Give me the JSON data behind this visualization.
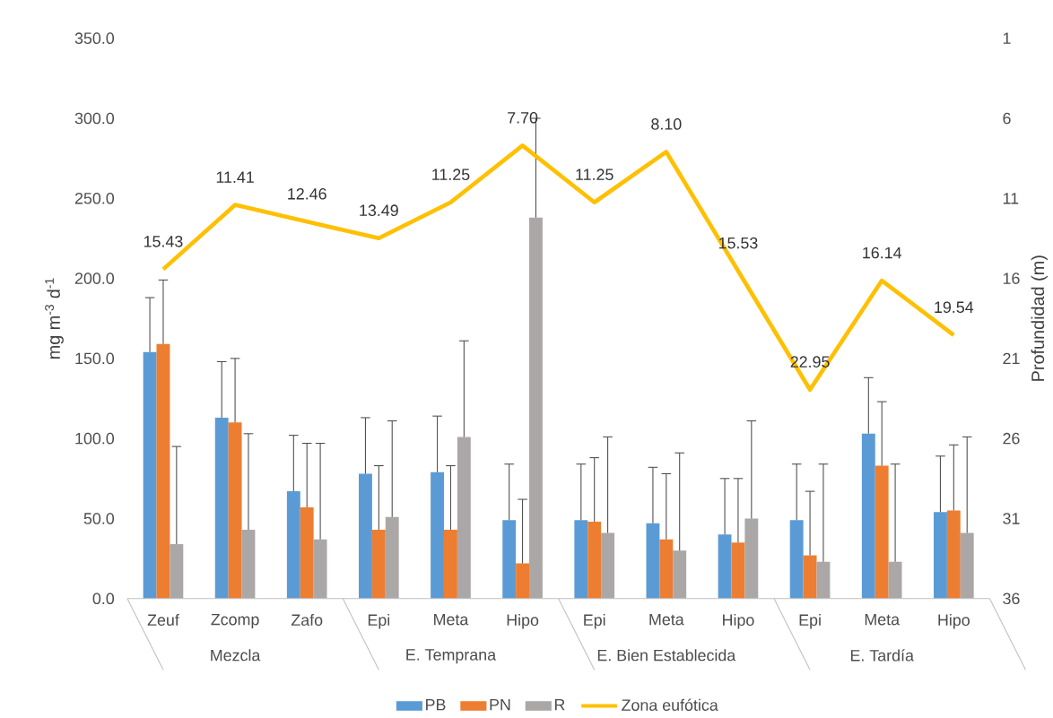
{
  "chart_data": {
    "type": "bar",
    "categories": [
      "Zeuf",
      "Zcomp",
      "Zafo",
      "Epi",
      "Meta",
      "Hipo",
      "Epi",
      "Meta",
      "Hipo",
      "Epi",
      "Meta",
      "Hipo"
    ],
    "annotations": [
      "Mezcla",
      "E. Temprana",
      "E. Bien Establecida",
      "E. Tardía"
    ],
    "ylabel": "mg m$^{-3}$ d$^{-1}$",
    "y2label": "Profundidad (m)",
    "ylim": [
      0,
      350
    ],
    "yticks": [
      {
        "value": 0,
        "label": "0.0"
      },
      {
        "value": 50,
        "label": "50.0"
      },
      {
        "value": 100,
        "label": "100.0"
      },
      {
        "value": 150,
        "label": "150.0"
      },
      {
        "value": 200,
        "label": "200.0"
      },
      {
        "value": 250,
        "label": "250.0"
      },
      {
        "value": 300,
        "label": "300.0"
      },
      {
        "value": 350,
        "label": "350.0"
      }
    ],
    "y2lim": [
      36,
      1
    ],
    "y2ticks": [
      1,
      6,
      11,
      16,
      21,
      26,
      31,
      36
    ],
    "legend": "bottom",
    "series": [
      {
        "name": "PB",
        "color": "#5b9bd5",
        "values": [
          154,
          113,
          67,
          78,
          79,
          49,
          49,
          47,
          40,
          49,
          103,
          54
        ],
        "errors": [
          [
            154,
            188
          ],
          [
            113,
            148
          ],
          [
            67,
            102
          ],
          [
            78,
            113
          ],
          [
            79,
            114
          ],
          [
            49,
            84
          ],
          [
            49,
            84
          ],
          [
            47,
            82
          ],
          [
            40,
            75
          ],
          [
            49,
            84
          ],
          [
            103,
            138
          ],
          [
            54,
            89
          ]
        ]
      },
      {
        "name": "PN",
        "color": "#ed7d31",
        "values": [
          159,
          110,
          57,
          43,
          43,
          22,
          48,
          37,
          35,
          27,
          83,
          55
        ],
        "errors": [
          [
            159,
            199
          ],
          [
            110,
            150
          ],
          [
            57,
            97
          ],
          [
            43,
            83
          ],
          [
            43,
            83
          ],
          [
            22,
            62
          ],
          [
            48,
            88
          ],
          [
            37,
            78
          ],
          [
            35,
            75
          ],
          [
            27,
            67
          ],
          [
            83,
            123
          ],
          [
            55,
            96
          ]
        ]
      },
      {
        "name": "R",
        "color": "#aba7a6",
        "values": [
          34,
          43,
          37,
          51,
          101,
          238,
          41,
          30,
          50,
          23,
          23,
          41
        ],
        "errors": [
          [
            34,
            95
          ],
          [
            43,
            103
          ],
          [
            37,
            97
          ],
          [
            51,
            111
          ],
          [
            101,
            161
          ],
          [
            238,
            300
          ],
          [
            41,
            101
          ],
          [
            30,
            91
          ],
          [
            50,
            111
          ],
          [
            23,
            84
          ],
          [
            23,
            84
          ],
          [
            41,
            101
          ]
        ]
      },
      {
        "name": "Zona eufótica",
        "type": "line",
        "axis": "y2",
        "color": "#ffc000",
        "values": [
          15.43,
          11.41,
          12.46,
          13.49,
          11.25,
          7.7,
          11.25,
          8.1,
          15.53,
          22.95,
          16.14,
          19.54
        ],
        "value_labels": [
          "15.43",
          "11.41",
          "12.46",
          "13.49",
          "11.25",
          "7.70",
          "11.25",
          "8.10",
          "15.53",
          "22.95",
          "16.14",
          "19.54"
        ]
      }
    ]
  }
}
